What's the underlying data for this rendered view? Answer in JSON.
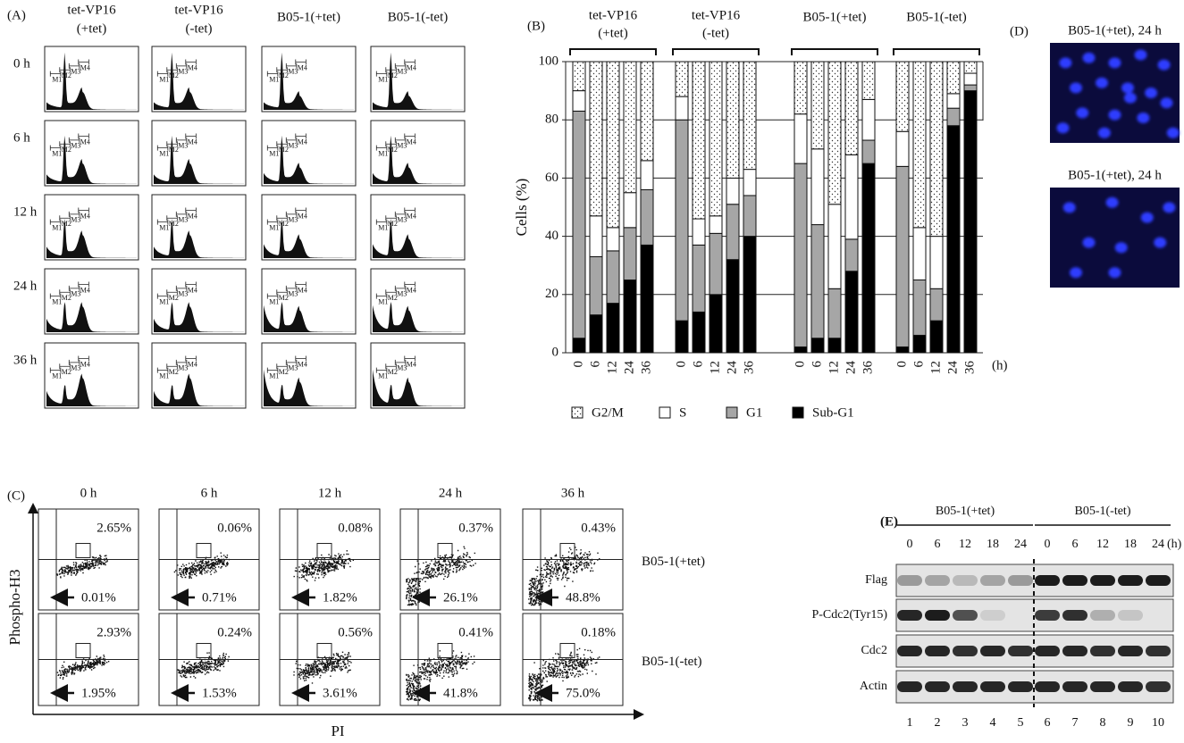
{
  "panel_a": {
    "label": "(A)",
    "columns": [
      {
        "lines": [
          "tet-VP16",
          "(+tet)"
        ]
      },
      {
        "lines": [
          "tet-VP16",
          "(-tet)"
        ]
      },
      {
        "lines": [
          "B05-1(+tet)"
        ]
      },
      {
        "lines": [
          "B05-1(-tet)"
        ]
      }
    ],
    "rows": [
      "0 h",
      "6 h",
      "12 h",
      "24 h",
      "36 h"
    ],
    "gates": [
      "M1",
      "M2",
      "M3",
      "M4"
    ]
  },
  "chart_data": {
    "type": "stacked-bar",
    "label": "(B)",
    "y_label": "Cells (%)",
    "x_unit": "(h)",
    "groups": [
      {
        "label": [
          "tet-VP16",
          "(+tet)"
        ],
        "categories": [
          "0",
          "6",
          "12",
          "24",
          "36"
        ]
      },
      {
        "label": [
          "tet-VP16",
          "(-tet)"
        ],
        "categories": [
          "0",
          "6",
          "12",
          "24",
          "36"
        ]
      },
      {
        "label": [
          "B05-1(+tet)"
        ],
        "categories": [
          "0",
          "6",
          "12",
          "24",
          "36"
        ]
      },
      {
        "label": [
          "B05-1(-tet)"
        ],
        "categories": [
          "0",
          "6",
          "12",
          "24",
          "36"
        ]
      }
    ],
    "series": [
      {
        "name": "G2/M",
        "color": "#ffffff",
        "pattern": "dots",
        "values": [
          [
            10,
            53,
            57,
            45,
            34
          ],
          [
            12,
            54,
            53,
            40,
            37
          ],
          [
            18,
            30,
            49,
            32,
            13
          ],
          [
            24,
            57,
            60,
            11,
            4
          ]
        ]
      },
      {
        "name": "S",
        "color": "#ffffff",
        "values": [
          [
            7,
            14,
            8,
            12,
            10
          ],
          [
            8,
            9,
            6,
            9,
            9
          ],
          [
            17,
            26,
            29,
            29,
            14
          ],
          [
            12,
            18,
            18,
            5,
            4
          ]
        ]
      },
      {
        "name": "G1",
        "color": "#a6a6a6",
        "values": [
          [
            78,
            20,
            18,
            18,
            19
          ],
          [
            69,
            23,
            21,
            19,
            14
          ],
          [
            63,
            39,
            17,
            11,
            8
          ],
          [
            62,
            19,
            11,
            6,
            2
          ]
        ]
      },
      {
        "name": "Sub-G1",
        "color": "#000000",
        "values": [
          [
            5,
            13,
            17,
            25,
            37
          ],
          [
            11,
            14,
            20,
            32,
            40
          ],
          [
            2,
            5,
            5,
            28,
            65
          ],
          [
            2,
            6,
            11,
            78,
            90
          ]
        ]
      }
    ],
    "ylim": [
      0,
      100
    ],
    "yticks": [
      0,
      20,
      40,
      60,
      80,
      100
    ],
    "grid": true
  },
  "panel_c": {
    "label": "(C)",
    "timepoints": [
      "0 h",
      "6 h",
      "12 h",
      "24 h",
      "36 h"
    ],
    "rows": [
      {
        "label": "B05-1(+tet)",
        "upper": [
          "2.65%",
          "0.06%",
          "0.08%",
          "0.37%",
          "0.43%"
        ],
        "lower": [
          "0.01%",
          "0.71%",
          "1.82%",
          "26.1%",
          "48.8%"
        ]
      },
      {
        "label": "B05-1(-tet)",
        "upper": [
          "2.93%",
          "0.24%",
          "0.56%",
          "0.41%",
          "0.18%"
        ],
        "lower": [
          "1.95%",
          "1.53%",
          "3.61%",
          "41.8%",
          "75.0%"
        ]
      }
    ],
    "y_axis": "Phospho-H3",
    "x_axis": "PI"
  },
  "panel_d": {
    "label": "(D)",
    "images": [
      {
        "title": "B05-1(+tet), 24 h"
      },
      {
        "title": "B05-1(+tet), 24 h"
      }
    ]
  },
  "panel_e": {
    "label": "(E)",
    "groups": [
      {
        "label": "B05-1(+tet)",
        "times": [
          "0",
          "6",
          "12",
          "18",
          "24"
        ]
      },
      {
        "label": "B05-1(-tet)",
        "times": [
          "0",
          "6",
          "12",
          "18",
          "24"
        ]
      }
    ],
    "unit": "(h)",
    "rows": [
      "Flag",
      "P-Cdc2(Tyr15)",
      "Cdc2",
      "Actin"
    ],
    "lanes": [
      "1",
      "2",
      "3",
      "4",
      "5",
      "6",
      "7",
      "8",
      "9",
      "10"
    ]
  }
}
